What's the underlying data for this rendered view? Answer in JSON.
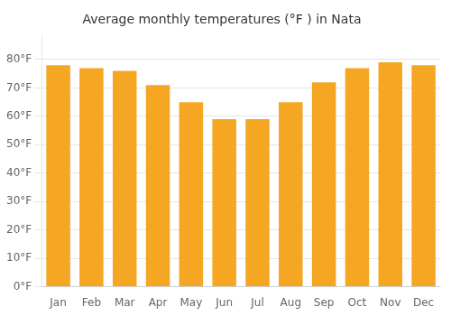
{
  "chart_data": {
    "type": "bar",
    "title": "Average monthly temperatures (°F ) in Nata",
    "categories": [
      "Jan",
      "Feb",
      "Mar",
      "Apr",
      "May",
      "Jun",
      "Jul",
      "Aug",
      "Sep",
      "Oct",
      "Nov",
      "Dec"
    ],
    "values": [
      78,
      77,
      76,
      71,
      65,
      59,
      59,
      65,
      72,
      77,
      79,
      78
    ],
    "color": "#F5A623",
    "ylim": [
      0,
      88
    ],
    "yticks": [
      {
        "value": 0,
        "label": "0°F"
      },
      {
        "value": 10,
        "label": "10°F"
      },
      {
        "value": 20,
        "label": "20°F"
      },
      {
        "value": 30,
        "label": "30°F"
      },
      {
        "value": 40,
        "label": "40°F"
      },
      {
        "value": 50,
        "label": "50°F"
      },
      {
        "value": 60,
        "label": "60°F"
      },
      {
        "value": 70,
        "label": "70°F"
      },
      {
        "value": 80,
        "label": "80°F"
      }
    ],
    "grid": true
  }
}
